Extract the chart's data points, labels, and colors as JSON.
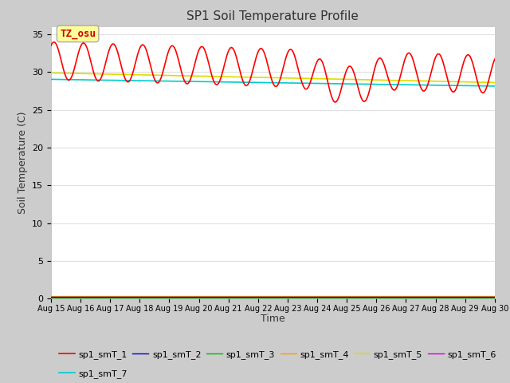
{
  "title": "SP1 Soil Temperature Profile",
  "xlabel": "Time",
  "ylabel": "Soil Temperature (C)",
  "annotation_text": "TZ_osu",
  "annotation_color": "#cc0000",
  "annotation_bg": "#ffff99",
  "annotation_border": "#aaaaaa",
  "ylim": [
    0,
    36
  ],
  "yticks": [
    0,
    5,
    10,
    15,
    20,
    25,
    30,
    35
  ],
  "fig_bg": "#cccccc",
  "axes_bg": "#ffffff",
  "grid_color": "#e0e0e0",
  "series_colors": {
    "sp1_smT_1": "#ff0000",
    "sp1_smT_2": "#0000cc",
    "sp1_smT_3": "#00bb00",
    "sp1_smT_4": "#ff9900",
    "sp1_smT_5": "#dddd00",
    "sp1_smT_6": "#cc00cc",
    "sp1_smT_7": "#00cccc"
  },
  "series_lw": {
    "sp1_smT_1": 1.2,
    "sp1_smT_2": 1.0,
    "sp1_smT_3": 1.0,
    "sp1_smT_4": 1.0,
    "sp1_smT_5": 1.2,
    "sp1_smT_6": 1.0,
    "sp1_smT_7": 1.2
  },
  "xtick_labels": [
    "Aug 15",
    "Aug 16",
    "Aug 17",
    "Aug 18",
    "Aug 19",
    "Aug 20",
    "Aug 21",
    "Aug 22",
    "Aug 23",
    "Aug 24",
    "Aug 25",
    "Aug 26",
    "Aug 27",
    "Aug 28",
    "Aug 29",
    "Aug 30"
  ],
  "legend_row1": [
    "sp1_smT_1",
    "sp1_smT_2",
    "sp1_smT_3",
    "sp1_smT_4",
    "sp1_smT_5",
    "sp1_smT_6"
  ],
  "legend_row2": [
    "sp1_smT_7"
  ]
}
